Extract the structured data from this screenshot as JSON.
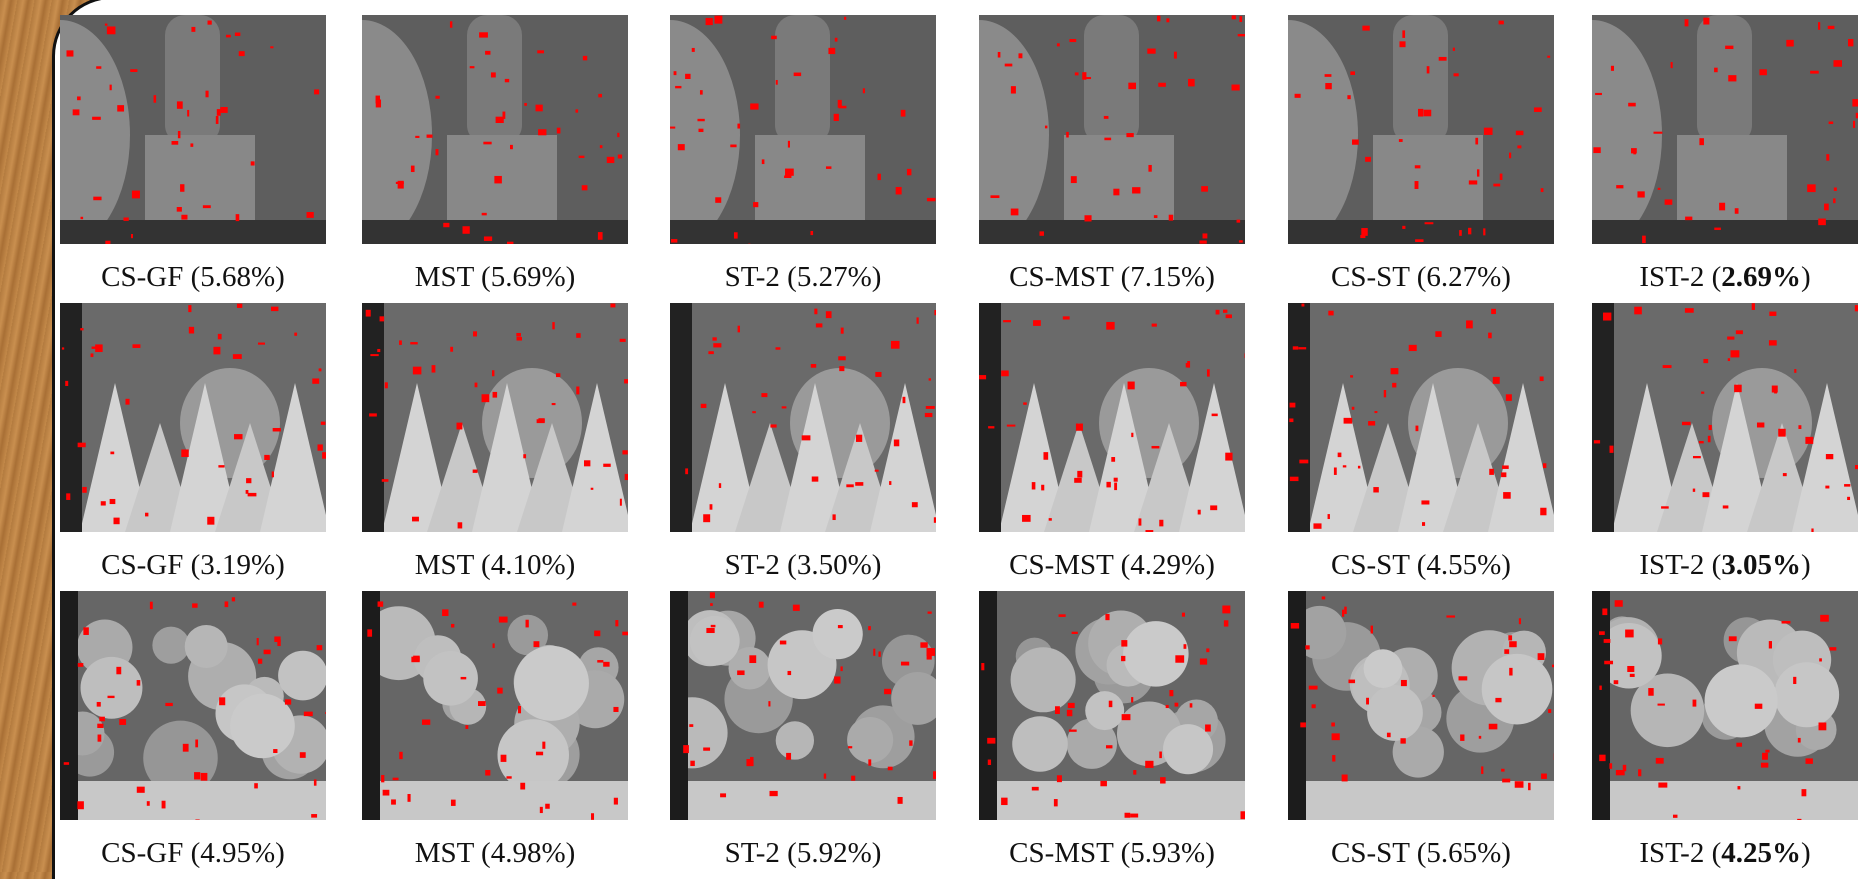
{
  "rows": [
    {
      "cells": [
        {
          "caption": [
            {
              "text": "CS-GF (5.68%)"
            }
          ]
        },
        {
          "caption": [
            {
              "text": "MST (5.69%)"
            }
          ]
        },
        {
          "caption": [
            {
              "text": "ST-2 (5.27%)"
            }
          ]
        },
        {
          "caption": [
            {
              "text": "CS-MST (7.15%)"
            }
          ]
        },
        {
          "caption": [
            {
              "text": "CS-ST (6.27%)"
            }
          ]
        },
        {
          "caption": [
            {
              "text": "IST-2 ("
            },
            {
              "text": "2.69%",
              "bold": true
            },
            {
              "text": ")"
            }
          ]
        }
      ]
    },
    {
      "cells": [
        {
          "caption": [
            {
              "text": "CS-GF (3.19%)"
            }
          ]
        },
        {
          "caption": [
            {
              "text": "MST (4.10%)"
            }
          ]
        },
        {
          "caption": [
            {
              "text": "ST-2 (3.50%)"
            }
          ]
        },
        {
          "caption": [
            {
              "text": "CS-MST (4.29%)"
            }
          ]
        },
        {
          "caption": [
            {
              "text": "CS-ST (4.55%)"
            }
          ]
        },
        {
          "caption": [
            {
              "text": "IST-2 ("
            },
            {
              "text": "3.05%",
              "bold": true
            },
            {
              "text": ")"
            }
          ]
        }
      ]
    },
    {
      "cells": [
        {
          "caption": [
            {
              "text": "CS-GF (4.95%)"
            }
          ]
        },
        {
          "caption": [
            {
              "text": "MST (4.98%)"
            }
          ]
        },
        {
          "caption": [
            {
              "text": "ST-2 (5.92%)"
            }
          ]
        },
        {
          "caption": [
            {
              "text": "CS-MST (5.93%)"
            }
          ]
        },
        {
          "caption": [
            {
              "text": "CS-ST (5.65%)"
            }
          ]
        },
        {
          "caption": [
            {
              "text": "IST-2 ("
            },
            {
              "text": "4.25%",
              "bold": true
            },
            {
              "text": ")"
            }
          ]
        }
      ]
    }
  ]
}
